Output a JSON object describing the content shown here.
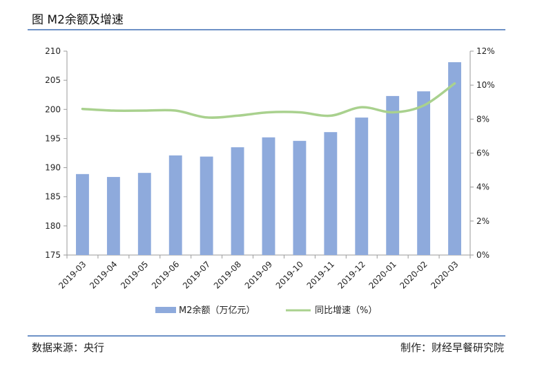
{
  "header": {
    "title": "图  M2余额及增速"
  },
  "footer": {
    "source": "数据来源：央行",
    "author": "制作：财经早餐研究院"
  },
  "colors": {
    "bar": "#8eaadc",
    "line": "#a9d18e",
    "rule": "#6d91c6",
    "axis": "#9a9a9a"
  },
  "chart_data": {
    "type": "bar",
    "title": "",
    "xlabel": "",
    "ylabel": "",
    "categories": [
      "2019-03",
      "2019-04",
      "2019-05",
      "2019-06",
      "2019-07",
      "2019-08",
      "2019-09",
      "2019-10",
      "2019-11",
      "2019-12",
      "2020-01",
      "2020-02",
      "2020-03"
    ],
    "series": [
      {
        "name": "M2余额（万亿元）",
        "type": "bar",
        "axis": "left",
        "values": [
          188.9,
          188.4,
          189.1,
          192.1,
          191.9,
          193.5,
          195.2,
          194.6,
          196.1,
          198.6,
          202.3,
          203.1,
          208.1
        ]
      },
      {
        "name": "同比增速（%）",
        "type": "line",
        "axis": "right",
        "values": [
          8.6,
          8.5,
          8.5,
          8.5,
          8.1,
          8.2,
          8.4,
          8.4,
          8.2,
          8.7,
          8.4,
          8.8,
          10.1
        ]
      }
    ],
    "left_axis": {
      "ylim": [
        175,
        210
      ],
      "ticks": [
        "175",
        "180",
        "185",
        "190",
        "195",
        "200",
        "205",
        "210"
      ]
    },
    "right_axis": {
      "ylim": [
        0,
        12
      ],
      "ticks": [
        "0%",
        "2%",
        "4%",
        "6%",
        "8%",
        "10%",
        "12%"
      ]
    },
    "grid": false,
    "legend_position": "bottom"
  }
}
